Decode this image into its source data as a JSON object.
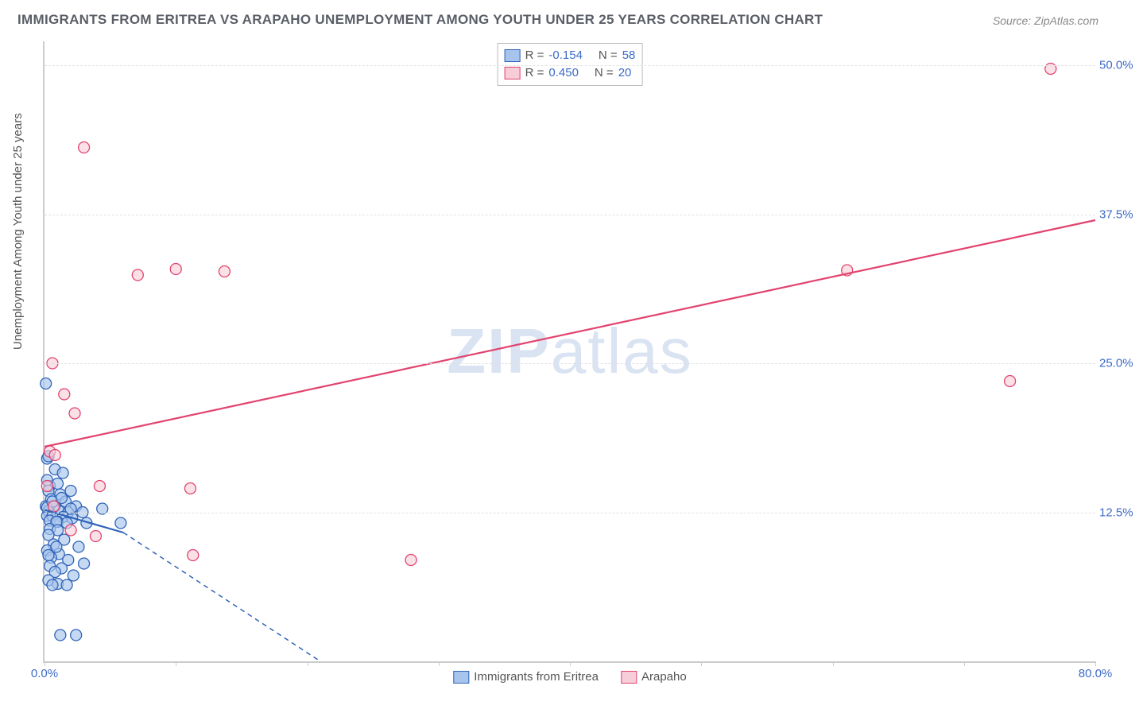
{
  "title": "IMMIGRANTS FROM ERITREA VS ARAPAHO UNEMPLOYMENT AMONG YOUTH UNDER 25 YEARS CORRELATION CHART",
  "source": "Source: ZipAtlas.com",
  "ylabel": "Unemployment Among Youth under 25 years",
  "watermark_bold": "ZIP",
  "watermark_light": "atlas",
  "chart": {
    "type": "scatter-correlation",
    "background_color": "#ffffff",
    "grid_color": "#e2e2e2",
    "axis_color": "#cccccc",
    "tick_label_color": "#3e6bc7",
    "xlim": [
      0,
      80
    ],
    "ylim": [
      0,
      52
    ],
    "xtick_positions": [
      0,
      10,
      20,
      30,
      40,
      50,
      60,
      70,
      80
    ],
    "xtick_labels": {
      "0": "0.0%",
      "80": "80.0%"
    },
    "ytick_positions": [
      12.5,
      25.0,
      37.5,
      50.0
    ],
    "ytick_labels": [
      "12.5%",
      "25.0%",
      "37.5%",
      "50.0%"
    ],
    "marker_radius": 7,
    "marker_stroke_width": 1.3,
    "trend_line_width": 2.2,
    "series": [
      {
        "name": "Immigrants from Eritrea",
        "fill_color": "#a7c5ec",
        "stroke_color": "#2f63b8",
        "fill_opacity": 0.65,
        "r_value": "-0.154",
        "n_value": "58",
        "trend": {
          "x1": 0,
          "y1": 12.7,
          "x2": 6,
          "y2": 10.8,
          "extrap_x2": 21,
          "extrap_y2": 0
        },
        "points": [
          [
            0.1,
            23.3
          ],
          [
            0.2,
            17.0
          ],
          [
            0.3,
            17.2
          ],
          [
            0.8,
            16.1
          ],
          [
            1.4,
            15.8
          ],
          [
            0.4,
            14.7
          ],
          [
            0.2,
            15.2
          ],
          [
            1.0,
            14.9
          ],
          [
            0.3,
            14.3
          ],
          [
            1.2,
            14.0
          ],
          [
            0.5,
            13.6
          ],
          [
            1.6,
            13.4
          ],
          [
            0.1,
            13.0
          ],
          [
            0.8,
            13.0
          ],
          [
            2.4,
            13.0
          ],
          [
            0.3,
            12.6
          ],
          [
            1.1,
            12.6
          ],
          [
            1.8,
            12.5
          ],
          [
            2.9,
            12.5
          ],
          [
            0.2,
            12.2
          ],
          [
            0.6,
            12.2
          ],
          [
            1.4,
            12.1
          ],
          [
            2.1,
            12.0
          ],
          [
            0.4,
            11.8
          ],
          [
            1.0,
            11.7
          ],
          [
            1.7,
            11.6
          ],
          [
            3.2,
            11.6
          ],
          [
            5.8,
            11.6
          ],
          [
            0.9,
            11.7
          ],
          [
            4.4,
            12.8
          ],
          [
            0.2,
            12.9
          ],
          [
            0.6,
            13.4
          ],
          [
            1.3,
            13.7
          ],
          [
            2.0,
            12.8
          ],
          [
            0.4,
            11.1
          ],
          [
            1.0,
            11.0
          ],
          [
            0.3,
            10.6
          ],
          [
            1.5,
            10.2
          ],
          [
            0.7,
            9.8
          ],
          [
            2.6,
            9.6
          ],
          [
            0.2,
            9.3
          ],
          [
            1.1,
            9.0
          ],
          [
            0.5,
            8.7
          ],
          [
            1.8,
            8.5
          ],
          [
            3.0,
            8.2
          ],
          [
            0.4,
            8.0
          ],
          [
            1.3,
            7.8
          ],
          [
            0.8,
            7.5
          ],
          [
            2.2,
            7.2
          ],
          [
            0.3,
            6.8
          ],
          [
            1.0,
            6.5
          ],
          [
            0.6,
            6.4
          ],
          [
            1.7,
            6.4
          ],
          [
            0.3,
            8.9
          ],
          [
            0.9,
            9.6
          ],
          [
            1.2,
            2.2
          ],
          [
            2.4,
            2.2
          ],
          [
            2.0,
            14.3
          ]
        ]
      },
      {
        "name": "Arapaho",
        "fill_color": "#f6cdd8",
        "stroke_color": "#e2436e",
        "fill_opacity": 0.6,
        "r_value": "0.450",
        "n_value": "20",
        "trend": {
          "x1": 0,
          "y1": 18.0,
          "x2": 80,
          "y2": 37.0
        },
        "points": [
          [
            76.6,
            49.7
          ],
          [
            3.0,
            43.1
          ],
          [
            0.6,
            25.0
          ],
          [
            1.5,
            22.4
          ],
          [
            7.1,
            32.4
          ],
          [
            10.0,
            32.9
          ],
          [
            13.7,
            32.7
          ],
          [
            2.3,
            20.8
          ],
          [
            0.4,
            17.6
          ],
          [
            0.8,
            17.3
          ],
          [
            0.2,
            14.7
          ],
          [
            4.2,
            14.7
          ],
          [
            11.1,
            14.5
          ],
          [
            2.0,
            11.0
          ],
          [
            3.9,
            10.5
          ],
          [
            0.7,
            13.0
          ],
          [
            11.3,
            8.9
          ],
          [
            27.9,
            8.5
          ],
          [
            61.1,
            32.8
          ],
          [
            73.5,
            23.5
          ]
        ]
      }
    ]
  },
  "legend_top": {
    "r_label": "R =",
    "n_label": "N ="
  },
  "legend_bottom": {
    "items": [
      "Immigrants from Eritrea",
      "Arapaho"
    ]
  }
}
